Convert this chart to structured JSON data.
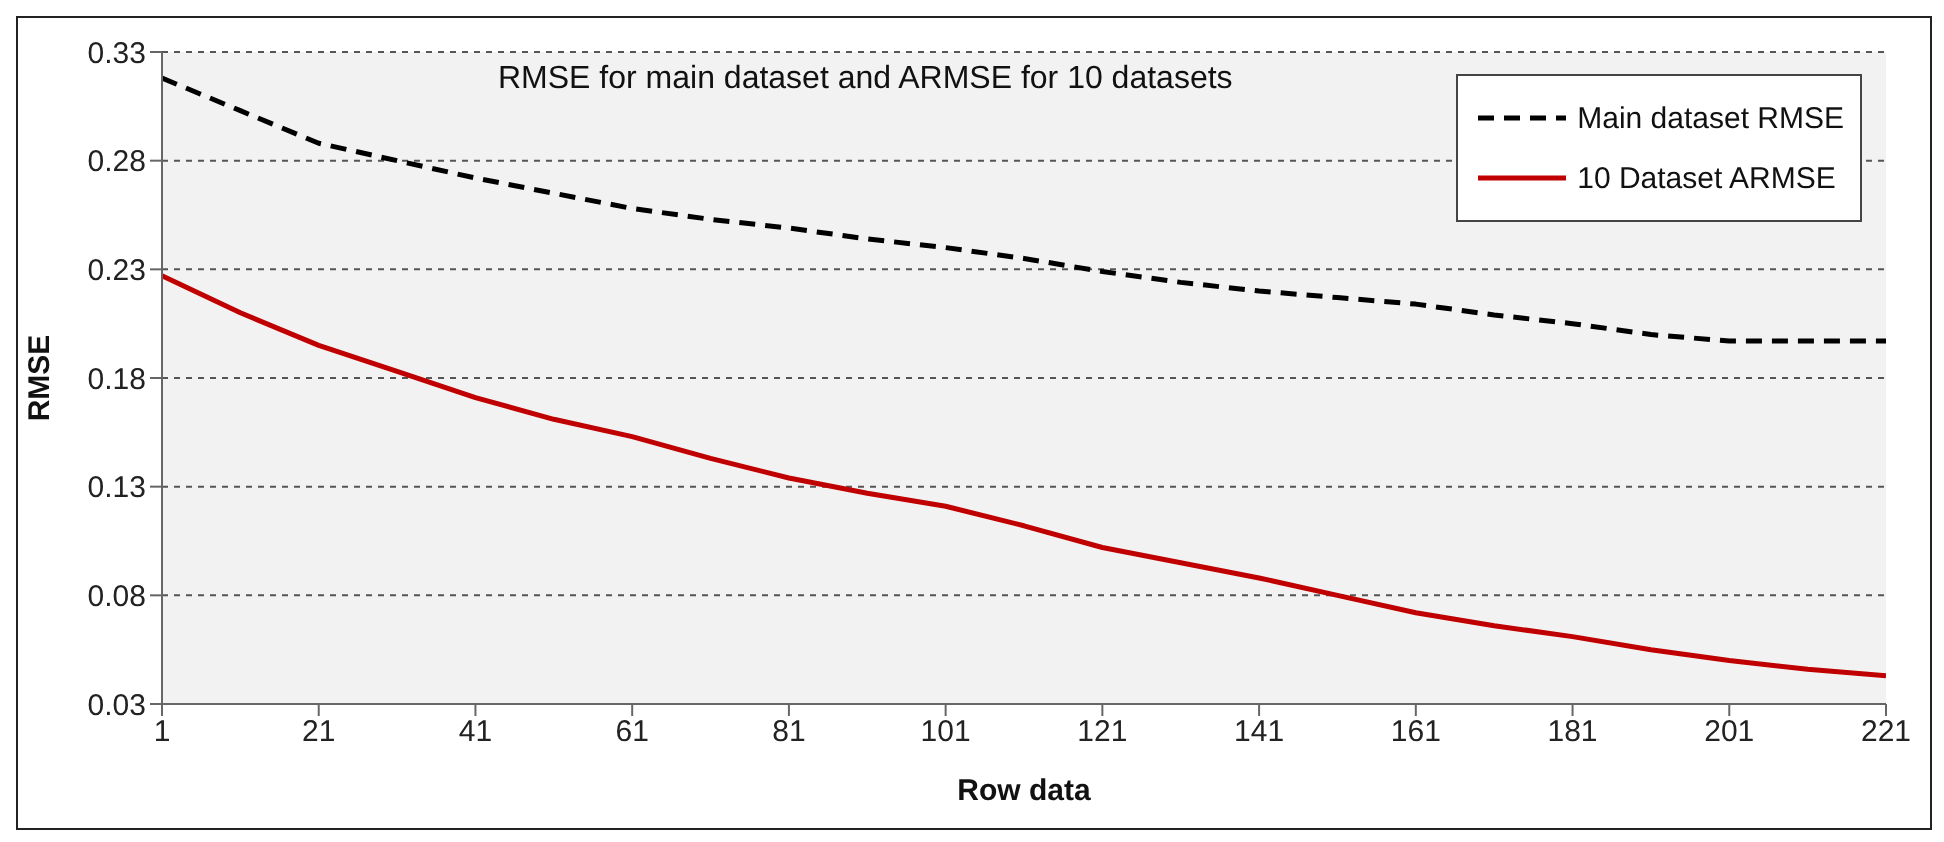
{
  "chart_data": {
    "type": "line",
    "title": "RMSE for main dataset and ARMSE for 10 datasets",
    "xlabel": "Row data",
    "ylabel": "RMSE",
    "x": [
      1,
      11,
      21,
      31,
      41,
      51,
      61,
      71,
      81,
      91,
      101,
      111,
      121,
      131,
      141,
      151,
      161,
      171,
      181,
      191,
      201,
      211,
      221
    ],
    "series": [
      {
        "name": "Main dataset RMSE",
        "color": "#000000",
        "line_style": "dashed",
        "values": [
          0.318,
          0.303,
          0.288,
          0.28,
          0.272,
          0.265,
          0.258,
          0.253,
          0.249,
          0.244,
          0.24,
          0.235,
          0.229,
          0.224,
          0.22,
          0.217,
          0.214,
          0.209,
          0.205,
          0.2,
          0.197,
          0.197,
          0.197
        ]
      },
      {
        "name": "10 Dataset ARMSE",
        "color": "#c00000",
        "line_style": "solid",
        "values": [
          0.227,
          0.21,
          0.195,
          0.183,
          0.171,
          0.161,
          0.153,
          0.143,
          0.134,
          0.127,
          0.121,
          0.112,
          0.102,
          0.095,
          0.088,
          0.08,
          0.072,
          0.066,
          0.061,
          0.055,
          0.05,
          0.046,
          0.043
        ]
      }
    ],
    "xlim": [
      1,
      221
    ],
    "xticks": [
      1,
      21,
      41,
      61,
      81,
      101,
      121,
      141,
      161,
      181,
      201,
      221
    ],
    "ylim": [
      0.03,
      0.33
    ],
    "yticks": [
      0.03,
      0.08,
      0.13,
      0.18,
      0.23,
      0.28,
      0.33
    ],
    "grid": "y",
    "legend": "top right"
  }
}
